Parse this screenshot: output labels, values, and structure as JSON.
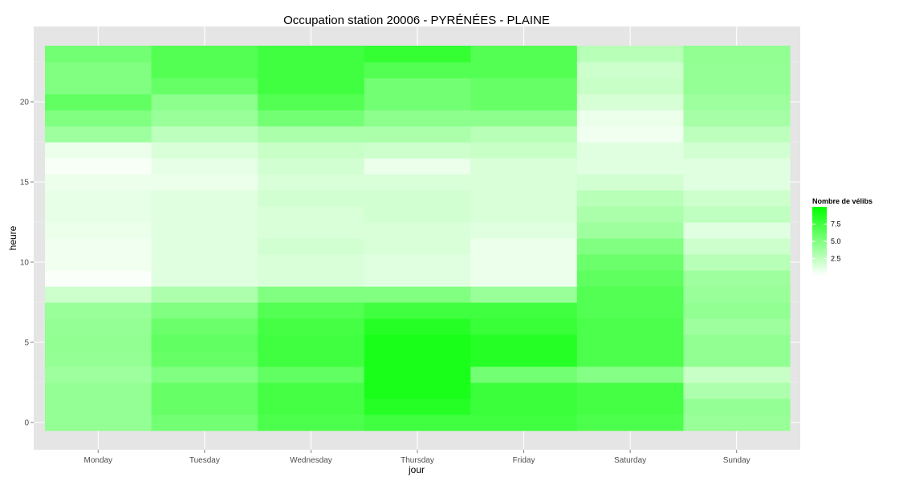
{
  "chart_data": {
    "type": "heatmap",
    "title": "Occupation station 20006 - PYRÉNÉES - PLAINE",
    "xlabel": "jour",
    "ylabel": "heure",
    "x_categories": [
      "Monday",
      "Tuesday",
      "Wednesday",
      "Thursday",
      "Friday",
      "Saturday",
      "Sunday"
    ],
    "y_values": [
      0,
      1,
      2,
      3,
      4,
      5,
      6,
      7,
      8,
      9,
      10,
      11,
      12,
      13,
      14,
      15,
      16,
      17,
      18,
      19,
      20,
      21,
      22,
      23
    ],
    "y_ticks": [
      0,
      5,
      10,
      15,
      20
    ],
    "y_range": [
      -1.2,
      24.3
    ],
    "grid": true,
    "legend": {
      "title": "Nombre de vélibs",
      "position": "right",
      "ticks": [
        2.5,
        5.0,
        7.5
      ],
      "tick_labels": [
        "2.5",
        "5.0",
        "7.5"
      ],
      "range": [
        0,
        10
      ],
      "low_color": "#ffffff",
      "high_color": "#00ff00"
    },
    "values": [
      [
        4.2,
        5.5,
        7.0,
        7.5,
        7.5,
        7.0,
        4.0
      ],
      [
        4.2,
        6.0,
        7.3,
        8.5,
        7.7,
        7.3,
        4.2
      ],
      [
        4.2,
        6.0,
        7.3,
        9.0,
        7.7,
        7.3,
        3.2
      ],
      [
        3.8,
        5.0,
        6.2,
        9.0,
        5.5,
        4.8,
        2.2
      ],
      [
        4.2,
        6.0,
        7.5,
        9.0,
        8.5,
        7.0,
        4.3
      ],
      [
        4.3,
        6.2,
        7.5,
        9.0,
        8.5,
        7.0,
        4.3
      ],
      [
        4.2,
        5.8,
        7.3,
        8.5,
        7.8,
        7.0,
        3.8
      ],
      [
        4.0,
        5.0,
        6.8,
        7.5,
        7.5,
        6.8,
        4.3
      ],
      [
        2.0,
        3.2,
        5.0,
        5.0,
        4.0,
        6.8,
        4.0
      ],
      [
        0.2,
        1.2,
        1.5,
        1.2,
        0.8,
        6.3,
        3.8
      ],
      [
        0.6,
        1.2,
        1.5,
        1.2,
        0.8,
        5.8,
        2.8
      ],
      [
        0.6,
        1.2,
        1.8,
        1.5,
        0.8,
        5.0,
        2.0
      ],
      [
        0.8,
        1.2,
        1.5,
        1.5,
        1.2,
        3.8,
        1.2
      ],
      [
        1.0,
        1.2,
        1.5,
        1.8,
        1.5,
        3.3,
        2.5
      ],
      [
        1.0,
        1.2,
        1.8,
        1.8,
        1.5,
        2.8,
        2.0
      ],
      [
        0.8,
        0.8,
        1.5,
        1.5,
        1.5,
        1.8,
        1.2
      ],
      [
        0.3,
        1.0,
        1.8,
        0.8,
        1.5,
        1.2,
        1.2
      ],
      [
        0.8,
        1.5,
        2.2,
        2.0,
        2.2,
        1.2,
        1.8
      ],
      [
        3.8,
        2.6,
        3.3,
        3.3,
        2.8,
        0.6,
        2.6
      ],
      [
        5.0,
        4.0,
        5.5,
        4.5,
        4.5,
        0.8,
        3.5
      ],
      [
        6.2,
        4.5,
        6.8,
        5.5,
        6.0,
        1.6,
        3.8
      ],
      [
        5.0,
        6.0,
        7.5,
        5.5,
        6.0,
        2.2,
        4.2
      ],
      [
        5.0,
        6.8,
        7.5,
        6.8,
        6.8,
        2.0,
        4.2
      ],
      [
        5.5,
        6.8,
        7.5,
        8.0,
        6.8,
        2.8,
        4.3
      ]
    ]
  }
}
